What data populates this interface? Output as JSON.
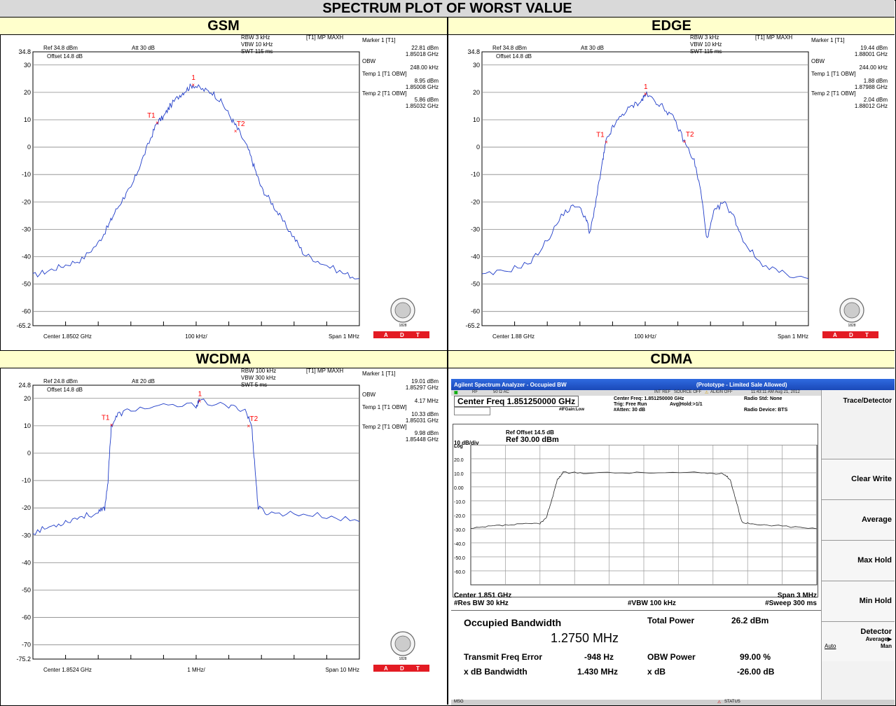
{
  "header": {
    "title": "SPECTRUM PLOT OF WORST VALUE"
  },
  "panels": {
    "gsm": {
      "label": "GSM"
    },
    "edge": {
      "label": "EDGE"
    },
    "wcdma": {
      "label": "WCDMA"
    },
    "cdma": {
      "label": "CDMA"
    }
  },
  "badge": {
    "a": "A",
    "d": "D",
    "t": "T",
    "year": "1828",
    "seal": "BUREAU VERITAS"
  },
  "colors": {
    "trace": "#1f3cc8",
    "marker": "#ff0000",
    "header_bg": "#d9d9d9",
    "sub_bg": "#ffffcc",
    "adt_red": "#e31b23"
  },
  "chart_data": [
    {
      "type": "line",
      "id": "gsm",
      "ylim": [
        -65.2,
        34.8
      ],
      "xlim": [
        -0.5,
        0.5
      ],
      "x_unit": "MHz offset",
      "y_ticks": [
        "34.8",
        "30",
        "20",
        "10",
        "0",
        "-10",
        "-20",
        "-30",
        "-40",
        "-50",
        "-60",
        "-65.2"
      ],
      "y_tick_values": [
        34.8,
        30,
        20,
        10,
        0,
        -10,
        -20,
        -30,
        -40,
        -50,
        -60,
        -65.2
      ],
      "bottom": {
        "center": "Center 1.8502 GHz",
        "div": "100 kHz/",
        "span": "Span 1 MHz"
      },
      "top": {
        "ref": "Ref 34.8 dBm",
        "att": "Att  30 dB",
        "rbw": "RBW 3 kHz",
        "vbw": "VBW 10 kHz",
        "swt": "SWT 115 ms",
        "trace": "[T1] MP MAXH",
        "offset": "Offset  14.8 dB"
      },
      "markers": [
        {
          "label": "1",
          "x": -0.01,
          "y": 22.8
        },
        {
          "label": "T1",
          "x": -0.12,
          "y": 8.95
        },
        {
          "label": "T2",
          "x": 0.12,
          "y": 5.86
        }
      ],
      "readout": [
        "Marker 1 [T1]",
        "22.81 dBm",
        "1.85018 GHz",
        "OBW",
        "248.00 kHz",
        "Temp 1 [T1 OBW]",
        "8.95 dBm",
        "1.85008 GHz",
        "Temp 2 [T1 OBW]",
        "5.86 dBm",
        "1.85032 GHz"
      ],
      "series": [
        {
          "values": [
            [
              -0.5,
              -47
            ],
            [
              -0.45,
              -45
            ],
            [
              -0.4,
              -43
            ],
            [
              -0.35,
              -41
            ],
            [
              -0.3,
              -35
            ],
            [
              -0.27,
              -29
            ],
            [
              -0.25,
              -24
            ],
            [
              -0.22,
              -18
            ],
            [
              -0.2,
              -15
            ],
            [
              -0.17,
              -6
            ],
            [
              -0.14,
              3
            ],
            [
              -0.12,
              9
            ],
            [
              -0.1,
              11
            ],
            [
              -0.08,
              15
            ],
            [
              -0.05,
              19
            ],
            [
              -0.03,
              21
            ],
            [
              -0.01,
              22.8
            ],
            [
              0.02,
              21
            ],
            [
              0.05,
              20
            ],
            [
              0.08,
              16
            ],
            [
              0.11,
              10
            ],
            [
              0.13,
              6
            ],
            [
              0.16,
              -1
            ],
            [
              0.18,
              -8
            ],
            [
              0.2,
              -15
            ],
            [
              0.23,
              -20
            ],
            [
              0.26,
              -26
            ],
            [
              0.3,
              -33
            ],
            [
              0.33,
              -39
            ],
            [
              0.38,
              -42
            ],
            [
              0.45,
              -46
            ],
            [
              0.5,
              -48
            ]
          ]
        }
      ]
    },
    {
      "type": "line",
      "id": "edge",
      "ylim": [
        -65.2,
        34.8
      ],
      "xlim": [
        -0.5,
        0.5
      ],
      "x_unit": "MHz offset",
      "y_ticks": [
        "34.8",
        "30",
        "20",
        "10",
        "0",
        "-10",
        "-20",
        "-30",
        "-40",
        "-50",
        "-60",
        "-65.2"
      ],
      "y_tick_values": [
        34.8,
        30,
        20,
        10,
        0,
        -10,
        -20,
        -30,
        -40,
        -50,
        -60,
        -65.2
      ],
      "bottom": {
        "center": "Center 1.88 GHz",
        "div": "100 kHz/",
        "span": "Span 1 MHz"
      },
      "top": {
        "ref": "Ref 34.8 dBm",
        "att": "Att  30 dB",
        "rbw": "RBW 3 kHz",
        "vbw": "VBW 10 kHz",
        "swt": "SWT 115 ms",
        "trace": "[T1] MP MAXH",
        "offset": "Offset  14.8 dB"
      },
      "markers": [
        {
          "label": "1",
          "x": 0.0,
          "y": 19.4
        },
        {
          "label": "T1",
          "x": -0.12,
          "y": 1.88
        },
        {
          "label": "T2",
          "x": 0.12,
          "y": 2.04
        }
      ],
      "readout": [
        "Marker 1 [T1]",
        "19.44 dBm",
        "1.88001 GHz",
        "OBW",
        "244.00 kHz",
        "Temp 1 [T1 OBW]",
        "1.88 dBm",
        "1.87988 GHz",
        "Temp 2 [T1 OBW]",
        "2.04 dBm",
        "1.88012 GHz"
      ],
      "series": [
        {
          "values": [
            [
              -0.5,
              -47
            ],
            [
              -0.42,
              -45
            ],
            [
              -0.35,
              -42
            ],
            [
              -0.3,
              -34
            ],
            [
              -0.25,
              -24
            ],
            [
              -0.21,
              -21
            ],
            [
              -0.18,
              -26
            ],
            [
              -0.17,
              -32
            ],
            [
              -0.15,
              -19
            ],
            [
              -0.13,
              -5
            ],
            [
              -0.12,
              2
            ],
            [
              -0.1,
              7
            ],
            [
              -0.07,
              12
            ],
            [
              -0.04,
              15
            ],
            [
              -0.01,
              17
            ],
            [
              0.0,
              19.4
            ],
            [
              0.03,
              17
            ],
            [
              0.06,
              14
            ],
            [
              0.09,
              10
            ],
            [
              0.12,
              2
            ],
            [
              0.15,
              -5
            ],
            [
              0.17,
              -16
            ],
            [
              0.19,
              -34
            ],
            [
              0.21,
              -24
            ],
            [
              0.24,
              -20
            ],
            [
              0.27,
              -25
            ],
            [
              0.3,
              -34
            ],
            [
              0.35,
              -42
            ],
            [
              0.42,
              -46
            ],
            [
              0.5,
              -48
            ]
          ]
        }
      ]
    },
    {
      "type": "line",
      "id": "wcdma",
      "ylim": [
        -75.2,
        24.8
      ],
      "xlim": [
        -5,
        5
      ],
      "x_unit": "MHz offset",
      "y_ticks": [
        "24.8",
        "20",
        "10",
        "0",
        "-10",
        "-20",
        "-30",
        "-40",
        "-50",
        "-60",
        "-70",
        "-75.2"
      ],
      "y_tick_values": [
        24.8,
        20,
        10,
        0,
        -10,
        -20,
        -30,
        -40,
        -50,
        -60,
        -70,
        -75.2
      ],
      "bottom": {
        "center": "Center 1.8524 GHz",
        "div": "1 MHz/",
        "span": "Span 10 MHz"
      },
      "top": {
        "ref": "Ref 24.8 dBm",
        "att": "Att  20 dB",
        "rbw": "RBW 100 kHz",
        "vbw": "VBW 300 kHz",
        "swt": "SWT 5 ms",
        "trace": "[T1] MP MAXH",
        "offset": "Offset  14.8 dB"
      },
      "markers": [
        {
          "label": "1",
          "x": 0.1,
          "y": 19.0
        },
        {
          "label": "T1",
          "x": -2.6,
          "y": 10.33
        },
        {
          "label": "T2",
          "x": 1.6,
          "y": 9.98
        }
      ],
      "readout": [
        "Marker 1 [T1]",
        "19.01 dBm",
        "1.85297 GHz",
        "OBW",
        "4.17 MHz",
        "Temp 1 [T1 OBW]",
        "10.33 dBm",
        "1.85031 GHz",
        "Temp 2 [T1 OBW]",
        "9.98 dBm",
        "1.85448 GHz"
      ],
      "series": [
        {
          "values": [
            [
              -5,
              -29
            ],
            [
              -4.5,
              -27
            ],
            [
              -4,
              -25
            ],
            [
              -3.5,
              -23
            ],
            [
              -3,
              -22
            ],
            [
              -2.8,
              -20
            ],
            [
              -2.7,
              -10
            ],
            [
              -2.6,
              10
            ],
            [
              -2.4,
              14
            ],
            [
              -2,
              16
            ],
            [
              -1,
              17
            ],
            [
              0,
              17.5
            ],
            [
              0.1,
              19
            ],
            [
              1,
              17
            ],
            [
              1.5,
              16
            ],
            [
              1.7,
              10
            ],
            [
              1.8,
              -5
            ],
            [
              1.9,
              -20
            ],
            [
              2.2,
              -22
            ],
            [
              3,
              -22
            ],
            [
              4,
              -23
            ],
            [
              5,
              -25
            ]
          ]
        }
      ]
    },
    {
      "type": "line",
      "id": "cdma",
      "ylim": [
        -70,
        30
      ],
      "xlim": [
        -1.5,
        1.5
      ],
      "x_unit": "MHz offset",
      "y_ticks": [
        "Log",
        "20.0",
        "10.0",
        "0.00",
        "-10.0",
        "-20.0",
        "-30.0",
        "-40.0",
        "-50.0",
        "-60.0"
      ],
      "y_tick_values": [
        30,
        20,
        10,
        0,
        -10,
        -20,
        -30,
        -40,
        -50,
        -60
      ],
      "series": [
        {
          "values": [
            [
              -1.5,
              -30
            ],
            [
              -1.3,
              -28
            ],
            [
              -1.1,
              -27
            ],
            [
              -0.9,
              -26
            ],
            [
              -0.85,
              -23
            ],
            [
              -0.8,
              -10
            ],
            [
              -0.75,
              5
            ],
            [
              -0.7,
              10
            ],
            [
              -0.5,
              10
            ],
            [
              0,
              10
            ],
            [
              0.5,
              10
            ],
            [
              0.7,
              9
            ],
            [
              0.75,
              5
            ],
            [
              0.8,
              -10
            ],
            [
              0.85,
              -25
            ],
            [
              0.95,
              -27
            ],
            [
              1.2,
              -28
            ],
            [
              1.5,
              -30
            ]
          ]
        }
      ]
    }
  ],
  "cdma_app": {
    "title": "Agilent Spectrum Analyzer - Occupied BW",
    "title_right": "(Prototype - Limited Sale Allowed)",
    "status_items": [
      "RF",
      "50 Ω  AC",
      "INT REF",
      "SOURCE OFF",
      "ALIGN OFF",
      "11:43:11 AM Aug 21, 2012"
    ],
    "center_freq": "Center Freq  1.851250000 GHz",
    "info_center": "Center Freq: 1.851250000 GHz",
    "info_trig": "Trig: Free Run",
    "info_avg": "Avg|Hold:>1/1",
    "info_att": "#Atten: 30 dB",
    "info_ifgain": "#IFGain:Low",
    "radio_std": "Radio Std: None",
    "radio_device": "Radio Device: BTS",
    "ref_offset": "Ref Offset 14.5 dB",
    "scale": "10 dB/div",
    "ref": "Ref 30.00 dBm",
    "center": "Center  1.851 GHz",
    "res_bw": "#Res BW  30 kHz",
    "vbw": "#VBW  100 kHz",
    "span": "Span 3 MHz",
    "sweep": "#Sweep  300 ms",
    "occupied_label": "Occupied Bandwidth",
    "occupied_value": "1.2750 MHz",
    "total_power_label": "Total Power",
    "total_power_value": "26.2 dBm",
    "tfe_label": "Transmit Freq Error",
    "tfe_value": "-948 Hz",
    "obw_power_label": "OBW Power",
    "obw_power_value": "99.00 %",
    "xdb_bw_label": "x dB Bandwidth",
    "xdb_bw_value": "1.430 MHz",
    "xdb_label": "x dB",
    "xdb_value": "-26.00 dB",
    "softkeys": {
      "header": "Trace/Detector",
      "clear": "Clear Write",
      "average": "Average",
      "maxhold": "Max Hold",
      "minhold": "Min Hold",
      "detector": "Detector",
      "detector_sub": "Average▶",
      "auto": "Auto",
      "man": "Man"
    },
    "msg": "MSG",
    "status": "STATUS"
  }
}
